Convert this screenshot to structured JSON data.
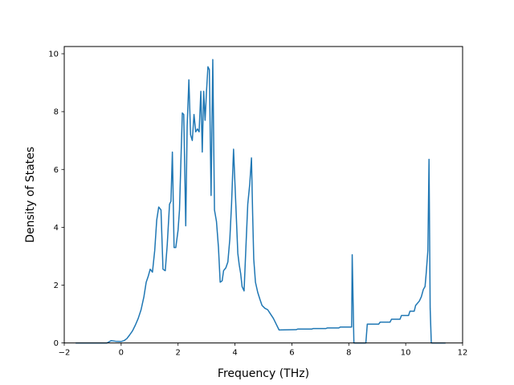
{
  "chart_data": {
    "type": "line",
    "xlabel": "Frequency (THz)",
    "ylabel": "Density of States",
    "xlim": [
      -2.0,
      12.0
    ],
    "ylim": [
      0,
      10.25
    ],
    "x_ticks": [
      -2,
      0,
      2,
      4,
      6,
      8,
      10,
      12
    ],
    "y_ticks": [
      0,
      2,
      4,
      6,
      8,
      10
    ],
    "grid": false,
    "series": [
      {
        "color": "#1f77b4",
        "points": [
          [
            -1.6,
            0.0
          ],
          [
            -0.5,
            0.0
          ],
          [
            -0.35,
            0.08
          ],
          [
            -0.2,
            0.06
          ],
          [
            0.0,
            0.05
          ],
          [
            0.1,
            0.08
          ],
          [
            0.2,
            0.15
          ],
          [
            0.3,
            0.28
          ],
          [
            0.4,
            0.42
          ],
          [
            0.5,
            0.62
          ],
          [
            0.6,
            0.85
          ],
          [
            0.7,
            1.15
          ],
          [
            0.8,
            1.6
          ],
          [
            0.88,
            2.1
          ],
          [
            0.95,
            2.3
          ],
          [
            1.02,
            2.55
          ],
          [
            1.1,
            2.45
          ],
          [
            1.18,
            3.2
          ],
          [
            1.25,
            4.25
          ],
          [
            1.32,
            4.7
          ],
          [
            1.4,
            4.6
          ],
          [
            1.47,
            2.55
          ],
          [
            1.55,
            2.5
          ],
          [
            1.62,
            3.4
          ],
          [
            1.7,
            4.8
          ],
          [
            1.75,
            4.9
          ],
          [
            1.8,
            6.6
          ],
          [
            1.86,
            3.3
          ],
          [
            1.92,
            3.3
          ],
          [
            2.0,
            3.9
          ],
          [
            2.05,
            4.6
          ],
          [
            2.1,
            6.3
          ],
          [
            2.15,
            7.95
          ],
          [
            2.2,
            7.9
          ],
          [
            2.27,
            4.05
          ],
          [
            2.32,
            7.5
          ],
          [
            2.38,
            9.1
          ],
          [
            2.44,
            7.2
          ],
          [
            2.5,
            7.0
          ],
          [
            2.56,
            7.9
          ],
          [
            2.62,
            7.3
          ],
          [
            2.68,
            7.4
          ],
          [
            2.74,
            7.3
          ],
          [
            2.8,
            8.7
          ],
          [
            2.85,
            6.6
          ],
          [
            2.9,
            8.7
          ],
          [
            2.95,
            7.7
          ],
          [
            3.0,
            8.7
          ],
          [
            3.05,
            9.55
          ],
          [
            3.1,
            9.45
          ],
          [
            3.16,
            5.1
          ],
          [
            3.22,
            9.8
          ],
          [
            3.28,
            4.6
          ],
          [
            3.35,
            4.2
          ],
          [
            3.42,
            3.3
          ],
          [
            3.48,
            2.1
          ],
          [
            3.55,
            2.15
          ],
          [
            3.6,
            2.5
          ],
          [
            3.68,
            2.6
          ],
          [
            3.75,
            2.8
          ],
          [
            3.82,
            3.6
          ],
          [
            3.88,
            4.8
          ],
          [
            3.95,
            6.7
          ],
          [
            4.0,
            5.5
          ],
          [
            4.05,
            4.3
          ],
          [
            4.1,
            3.1
          ],
          [
            4.15,
            2.7
          ],
          [
            4.2,
            2.4
          ],
          [
            4.25,
            1.95
          ],
          [
            4.32,
            1.8
          ],
          [
            4.38,
            3.2
          ],
          [
            4.45,
            4.8
          ],
          [
            4.52,
            5.5
          ],
          [
            4.58,
            6.4
          ],
          [
            4.62,
            4.5
          ],
          [
            4.66,
            2.9
          ],
          [
            4.72,
            2.1
          ],
          [
            4.8,
            1.75
          ],
          [
            4.88,
            1.5
          ],
          [
            4.95,
            1.3
          ],
          [
            5.05,
            1.2
          ],
          [
            5.15,
            1.15
          ],
          [
            5.25,
            1.0
          ],
          [
            5.35,
            0.85
          ],
          [
            5.45,
            0.65
          ],
          [
            5.55,
            0.45
          ],
          [
            6.15,
            0.46
          ],
          [
            6.2,
            0.48
          ],
          [
            6.7,
            0.48
          ],
          [
            6.75,
            0.5
          ],
          [
            7.2,
            0.5
          ],
          [
            7.25,
            0.52
          ],
          [
            7.65,
            0.52
          ],
          [
            7.7,
            0.55
          ],
          [
            8.05,
            0.55
          ],
          [
            8.1,
            0.55
          ],
          [
            8.12,
            3.05
          ],
          [
            8.18,
            0.0
          ],
          [
            8.6,
            0.0
          ],
          [
            8.65,
            0.65
          ],
          [
            9.05,
            0.65
          ],
          [
            9.1,
            0.72
          ],
          [
            9.45,
            0.72
          ],
          [
            9.5,
            0.82
          ],
          [
            9.8,
            0.82
          ],
          [
            9.85,
            0.95
          ],
          [
            10.1,
            0.95
          ],
          [
            10.15,
            1.1
          ],
          [
            10.3,
            1.1
          ],
          [
            10.35,
            1.3
          ],
          [
            10.48,
            1.45
          ],
          [
            10.55,
            1.6
          ],
          [
            10.62,
            1.85
          ],
          [
            10.68,
            1.95
          ],
          [
            10.72,
            2.4
          ],
          [
            10.78,
            3.2
          ],
          [
            10.82,
            6.35
          ],
          [
            10.86,
            1.2
          ],
          [
            10.9,
            0.0
          ],
          [
            11.4,
            0.0
          ]
        ]
      }
    ]
  }
}
